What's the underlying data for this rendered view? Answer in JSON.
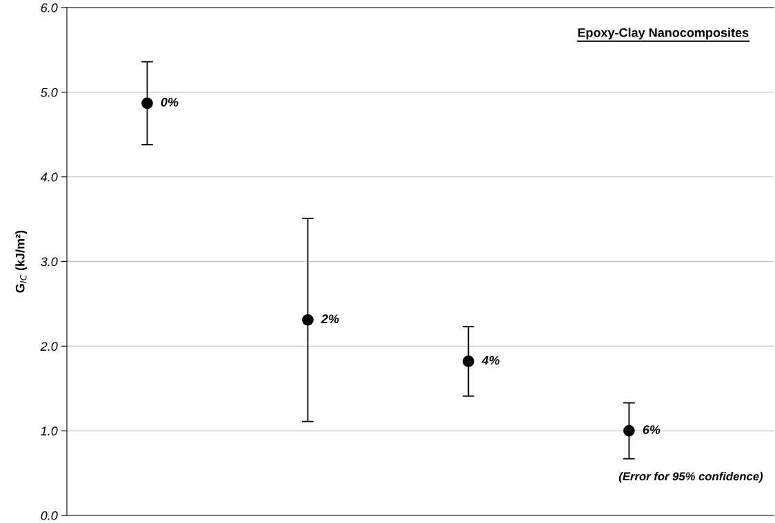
{
  "chart_data": {
    "type": "scatter",
    "title": "Epoxy-Clay Nanocomposites",
    "ylabel": "G$_{IC}$ (kJ/m²)",
    "categories": [
      null,
      null,
      null,
      null
    ],
    "series": [
      {
        "name": "0%",
        "color": "#000000",
        "values": [
          4.87,
          null,
          null,
          null
        ],
        "errors": [
          0.49,
          null,
          null,
          null
        ]
      },
      {
        "name": "2%",
        "color": "#000000",
        "values": [
          null,
          2.31,
          null,
          null
        ],
        "errors": [
          null,
          1.2,
          null,
          null
        ]
      },
      {
        "name": "4%",
        "color": "#000000",
        "values": [
          null,
          null,
          1.82,
          null
        ],
        "errors": [
          null,
          null,
          0.41,
          null
        ]
      },
      {
        "name": "6%",
        "color": "#000000",
        "values": [
          null,
          null,
          null,
          1.0
        ],
        "errors": [
          null,
          null,
          null,
          0.33
        ]
      }
    ],
    "ylim": [
      0,
      6
    ],
    "yticks": [
      {
        "value": 0,
        "label": "0.0"
      },
      {
        "value": 1,
        "label": "1.0"
      },
      {
        "value": 2,
        "label": "2.0"
      },
      {
        "value": 3,
        "label": "3.0"
      },
      {
        "value": 4,
        "label": "4.0"
      },
      {
        "value": 5,
        "label": "5.0"
      },
      {
        "value": 6,
        "label": "6.0"
      }
    ],
    "grid": "y",
    "marker": "circle",
    "tick_labels": "y",
    "annotations": [
      "(Error for 95% confidence)"
    ]
  }
}
